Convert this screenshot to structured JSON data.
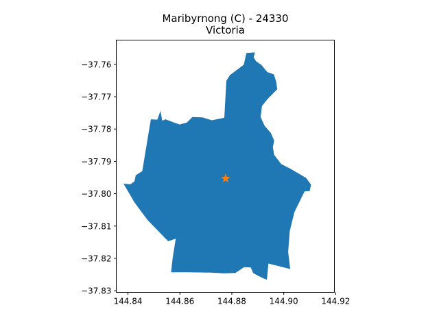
{
  "map": {
    "title_line1": "Maribyrnong (C) - 24330",
    "title_line2": "Victoria",
    "region_color": "#1f77b4",
    "marker_color": "#ff7f0e",
    "marker": {
      "lon": 144.8776,
      "lat": -37.7953,
      "symbol": "star"
    },
    "xlim": [
      144.8355,
      144.9195
    ],
    "ylim": [
      -37.8305,
      -37.7525
    ],
    "x_ticks": [
      144.84,
      144.86,
      144.88,
      144.9,
      144.92
    ],
    "x_tick_labels": [
      "144.84",
      "144.86",
      "144.88",
      "144.90",
      "144.92"
    ],
    "y_ticks": [
      -37.76,
      -37.77,
      -37.78,
      -37.79,
      -37.8,
      -37.81,
      -37.82,
      -37.83
    ],
    "y_tick_labels": [
      "−37.76",
      "−37.77",
      "−37.78",
      "−37.79",
      "−37.80",
      "−37.81",
      "−37.82",
      "−37.83"
    ],
    "boundary": [
      [
        144.8779,
        -37.7651
      ],
      [
        144.8793,
        -37.7633
      ],
      [
        144.8846,
        -37.7601
      ],
      [
        144.8856,
        -37.7565
      ],
      [
        144.8889,
        -37.7563
      ],
      [
        144.8884,
        -37.7578
      ],
      [
        144.8893,
        -37.759
      ],
      [
        144.8914,
        -37.7602
      ],
      [
        144.8937,
        -37.7624
      ],
      [
        144.8962,
        -37.7631
      ],
      [
        144.8971,
        -37.7654
      ],
      [
        144.8975,
        -37.7677
      ],
      [
        144.8938,
        -37.7707
      ],
      [
        144.8916,
        -37.7729
      ],
      [
        144.8911,
        -37.7763
      ],
      [
        144.8926,
        -37.779
      ],
      [
        144.895,
        -37.7812
      ],
      [
        144.8963,
        -37.7836
      ],
      [
        144.8958,
        -37.7856
      ],
      [
        144.8963,
        -37.788
      ],
      [
        144.899,
        -37.7908
      ],
      [
        144.9026,
        -37.7923
      ],
      [
        144.9086,
        -37.7951
      ],
      [
        144.9105,
        -37.7972
      ],
      [
        144.91,
        -37.7992
      ],
      [
        144.908,
        -37.7993
      ],
      [
        144.9041,
        -37.8057
      ],
      [
        144.9023,
        -37.8116
      ],
      [
        144.9017,
        -37.818
      ],
      [
        144.9025,
        -37.8233
      ],
      [
        144.8941,
        -37.8216
      ],
      [
        144.8935,
        -37.8266
      ],
      [
        144.8922,
        -37.8262
      ],
      [
        144.8904,
        -37.8255
      ],
      [
        144.8882,
        -37.8245
      ],
      [
        144.8873,
        -37.8228
      ],
      [
        144.8847,
        -37.8227
      ],
      [
        144.8814,
        -37.8245
      ],
      [
        144.8768,
        -37.8246
      ],
      [
        144.8719,
        -37.8244
      ],
      [
        144.8632,
        -37.8243
      ],
      [
        144.8566,
        -37.8243
      ],
      [
        144.8572,
        -37.8199
      ],
      [
        144.8584,
        -37.8139
      ],
      [
        144.8555,
        -37.8147
      ],
      [
        144.8475,
        -37.8081
      ],
      [
        144.8425,
        -37.8027
      ],
      [
        144.8383,
        -37.7969
      ],
      [
        144.8409,
        -37.7971
      ],
      [
        144.8425,
        -37.7962
      ],
      [
        144.843,
        -37.7943
      ],
      [
        144.8455,
        -37.793
      ],
      [
        144.8488,
        -37.777
      ],
      [
        144.8513,
        -37.7771
      ],
      [
        144.8525,
        -37.7744
      ],
      [
        144.8532,
        -37.7774
      ],
      [
        144.8545,
        -37.777
      ],
      [
        144.8581,
        -37.7781
      ],
      [
        144.8599,
        -37.7786
      ],
      [
        144.8627,
        -37.778
      ],
      [
        144.8648,
        -37.7763
      ],
      [
        144.8687,
        -37.7764
      ],
      [
        144.8723,
        -37.7773
      ],
      [
        144.8771,
        -37.7765
      ],
      [
        144.8779,
        -37.7651
      ]
    ]
  }
}
